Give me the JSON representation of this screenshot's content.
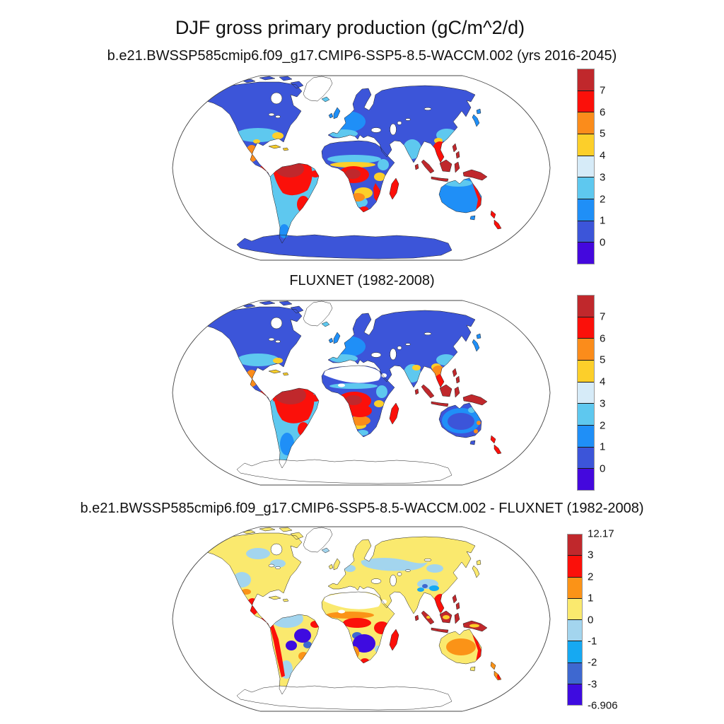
{
  "figure": {
    "title": "DJF gross primary production (gC/m^2/d)",
    "background": "#ffffff",
    "outline_color": "#444444",
    "coastline_color": "#1f1f1f"
  },
  "chart_data": [
    {
      "type": "heatmap",
      "panel": "model",
      "projection": "robinson",
      "title": "b.e21.BWSSP585cmip6.f09_g17.CMIP6-SSP5-8.5-WACCM.002 (yrs 2016-2045)",
      "units": "gC/m^2/d",
      "colorbar": {
        "orientation": "vertical",
        "segment_colors_top_to_bottom": [
          "#c0282c",
          "#fb100a",
          "#fb8c1b",
          "#fccf2a",
          "#d6ebf8",
          "#5ec8ef",
          "#1f8ff7",
          "#3c55d9",
          "#4408dd"
        ],
        "tick_labels_top_to_bottom": [
          "7",
          "6",
          "5",
          "4",
          "3",
          "2",
          "1",
          "0"
        ],
        "top_edge_label": "",
        "bottom_edge_label": "",
        "bin_edges": [
          0,
          1,
          2,
          3,
          4,
          5,
          6,
          7
        ]
      },
      "fills": {
        "c_darkred": "#c0282c",
        "c_red": "#fb100a",
        "c_orange": "#fb8c1b",
        "c_gold": "#fccf2a",
        "c_pale": "#d6ebf8",
        "c_sky": "#5ec8ef",
        "c_dodger": "#1f8ff7",
        "c_royal": "#3c55d9",
        "c_violet": "#4408dd",
        "no_data": "#ffffff"
      },
      "region_values": {
        "tropical_south_america": "6 to >7",
        "central_africa": "6 to >7",
        "maritime_continent": ">7",
        "boreal_north_america_eurasia": "0-1",
        "sahara": "0-1",
        "europe": "1-3",
        "india": "2-4",
        "southeast_asia": "6 to >7",
        "australia_interior": "1-2",
        "antarctica": "0-1",
        "se_south_america": "3-7",
        "southern_africa": "2-7"
      }
    },
    {
      "type": "heatmap",
      "panel": "observations",
      "projection": "robinson",
      "title": "FLUXNET (1982-2008)",
      "units": "gC/m^2/d",
      "colorbar": {
        "orientation": "vertical",
        "segment_colors_top_to_bottom": [
          "#c0282c",
          "#fb100a",
          "#fb8c1b",
          "#fccf2a",
          "#d6ebf8",
          "#5ec8ef",
          "#1f8ff7",
          "#3c55d9",
          "#4408dd"
        ],
        "tick_labels_top_to_bottom": [
          "7",
          "6",
          "5",
          "4",
          "3",
          "2",
          "1",
          "0"
        ],
        "top_edge_label": "",
        "bottom_edge_label": "",
        "bin_edges": [
          0,
          1,
          2,
          3,
          4,
          5,
          6,
          7
        ]
      },
      "fills": {
        "c_darkred": "#c0282c",
        "c_red": "#fb100a",
        "c_orange": "#fb8c1b",
        "c_gold": "#fccf2a",
        "c_pale": "#d6ebf8",
        "c_sky": "#5ec8ef",
        "c_dodger": "#1f8ff7",
        "c_royal": "#3c55d9",
        "c_violet": "#4408dd",
        "no_data": "#ffffff"
      },
      "region_values": {
        "tropical_south_america": "6 to >7",
        "central_africa": "6 to >7",
        "maritime_continent": ">7",
        "boreal_north_america_eurasia": "0-1",
        "sahara": "missing",
        "antarctica": "missing",
        "greenland": "missing",
        "europe": "1-3",
        "india": "2-4",
        "australia_interior": "0-2",
        "se_south_america": "3-7",
        "southern_africa": "2-7"
      }
    },
    {
      "type": "heatmap",
      "panel": "difference",
      "projection": "robinson",
      "title": "b.e21.BWSSP585cmip6.f09_g17.CMIP6-SSP5-8.5-WACCM.002 - FLUXNET (1982-2008)",
      "units": "gC/m^2/d",
      "max": 12.17,
      "min": -6.906,
      "colorbar": {
        "orientation": "vertical",
        "segment_colors_top_to_bottom": [
          "#c0282c",
          "#fb100a",
          "#fb9317",
          "#fae96e",
          "#a3d5ee",
          "#16a9f2",
          "#3e68d0",
          "#3e0be0"
        ],
        "tick_labels_top_to_bottom": [
          "3",
          "2",
          "1",
          "0",
          "-1",
          "-2",
          "-3"
        ],
        "top_edge_label": "12.17",
        "bottom_edge_label": "-6.906",
        "bin_edges": [
          -6.906,
          -3,
          -2,
          -1,
          0,
          1,
          2,
          3,
          12.17
        ]
      },
      "fills": {
        "c_darkred": "#c0282c",
        "c_red": "#fb100a",
        "c_orange": "#fb9317",
        "c_yellow": "#fae96e",
        "c_lightblue": "#a3d5ee",
        "c_cyan": "#16a9f2",
        "c_royal": "#3e68d0",
        "c_violet": "#3e0be0",
        "c_gold": "#fccf2a",
        "no_data": "#ffffff"
      },
      "region_values": {
        "nh_extratropics": "0 to 1",
        "west_russia_central_canada": "-1 to 0",
        "amazon_interior": "-1 to 0",
        "east_brazil": "-3 to -6.9",
        "southern_africa": "-3 to -6.9",
        "andes_mexico_central_america": "2 to 12.17",
        "se_asia_coasts": "1 to 3",
        "australia_interior": "1 to 2",
        "australia_coast": "2 to 3",
        "sahara": "missing",
        "antarctica": "missing",
        "greenland": "missing"
      }
    }
  ]
}
